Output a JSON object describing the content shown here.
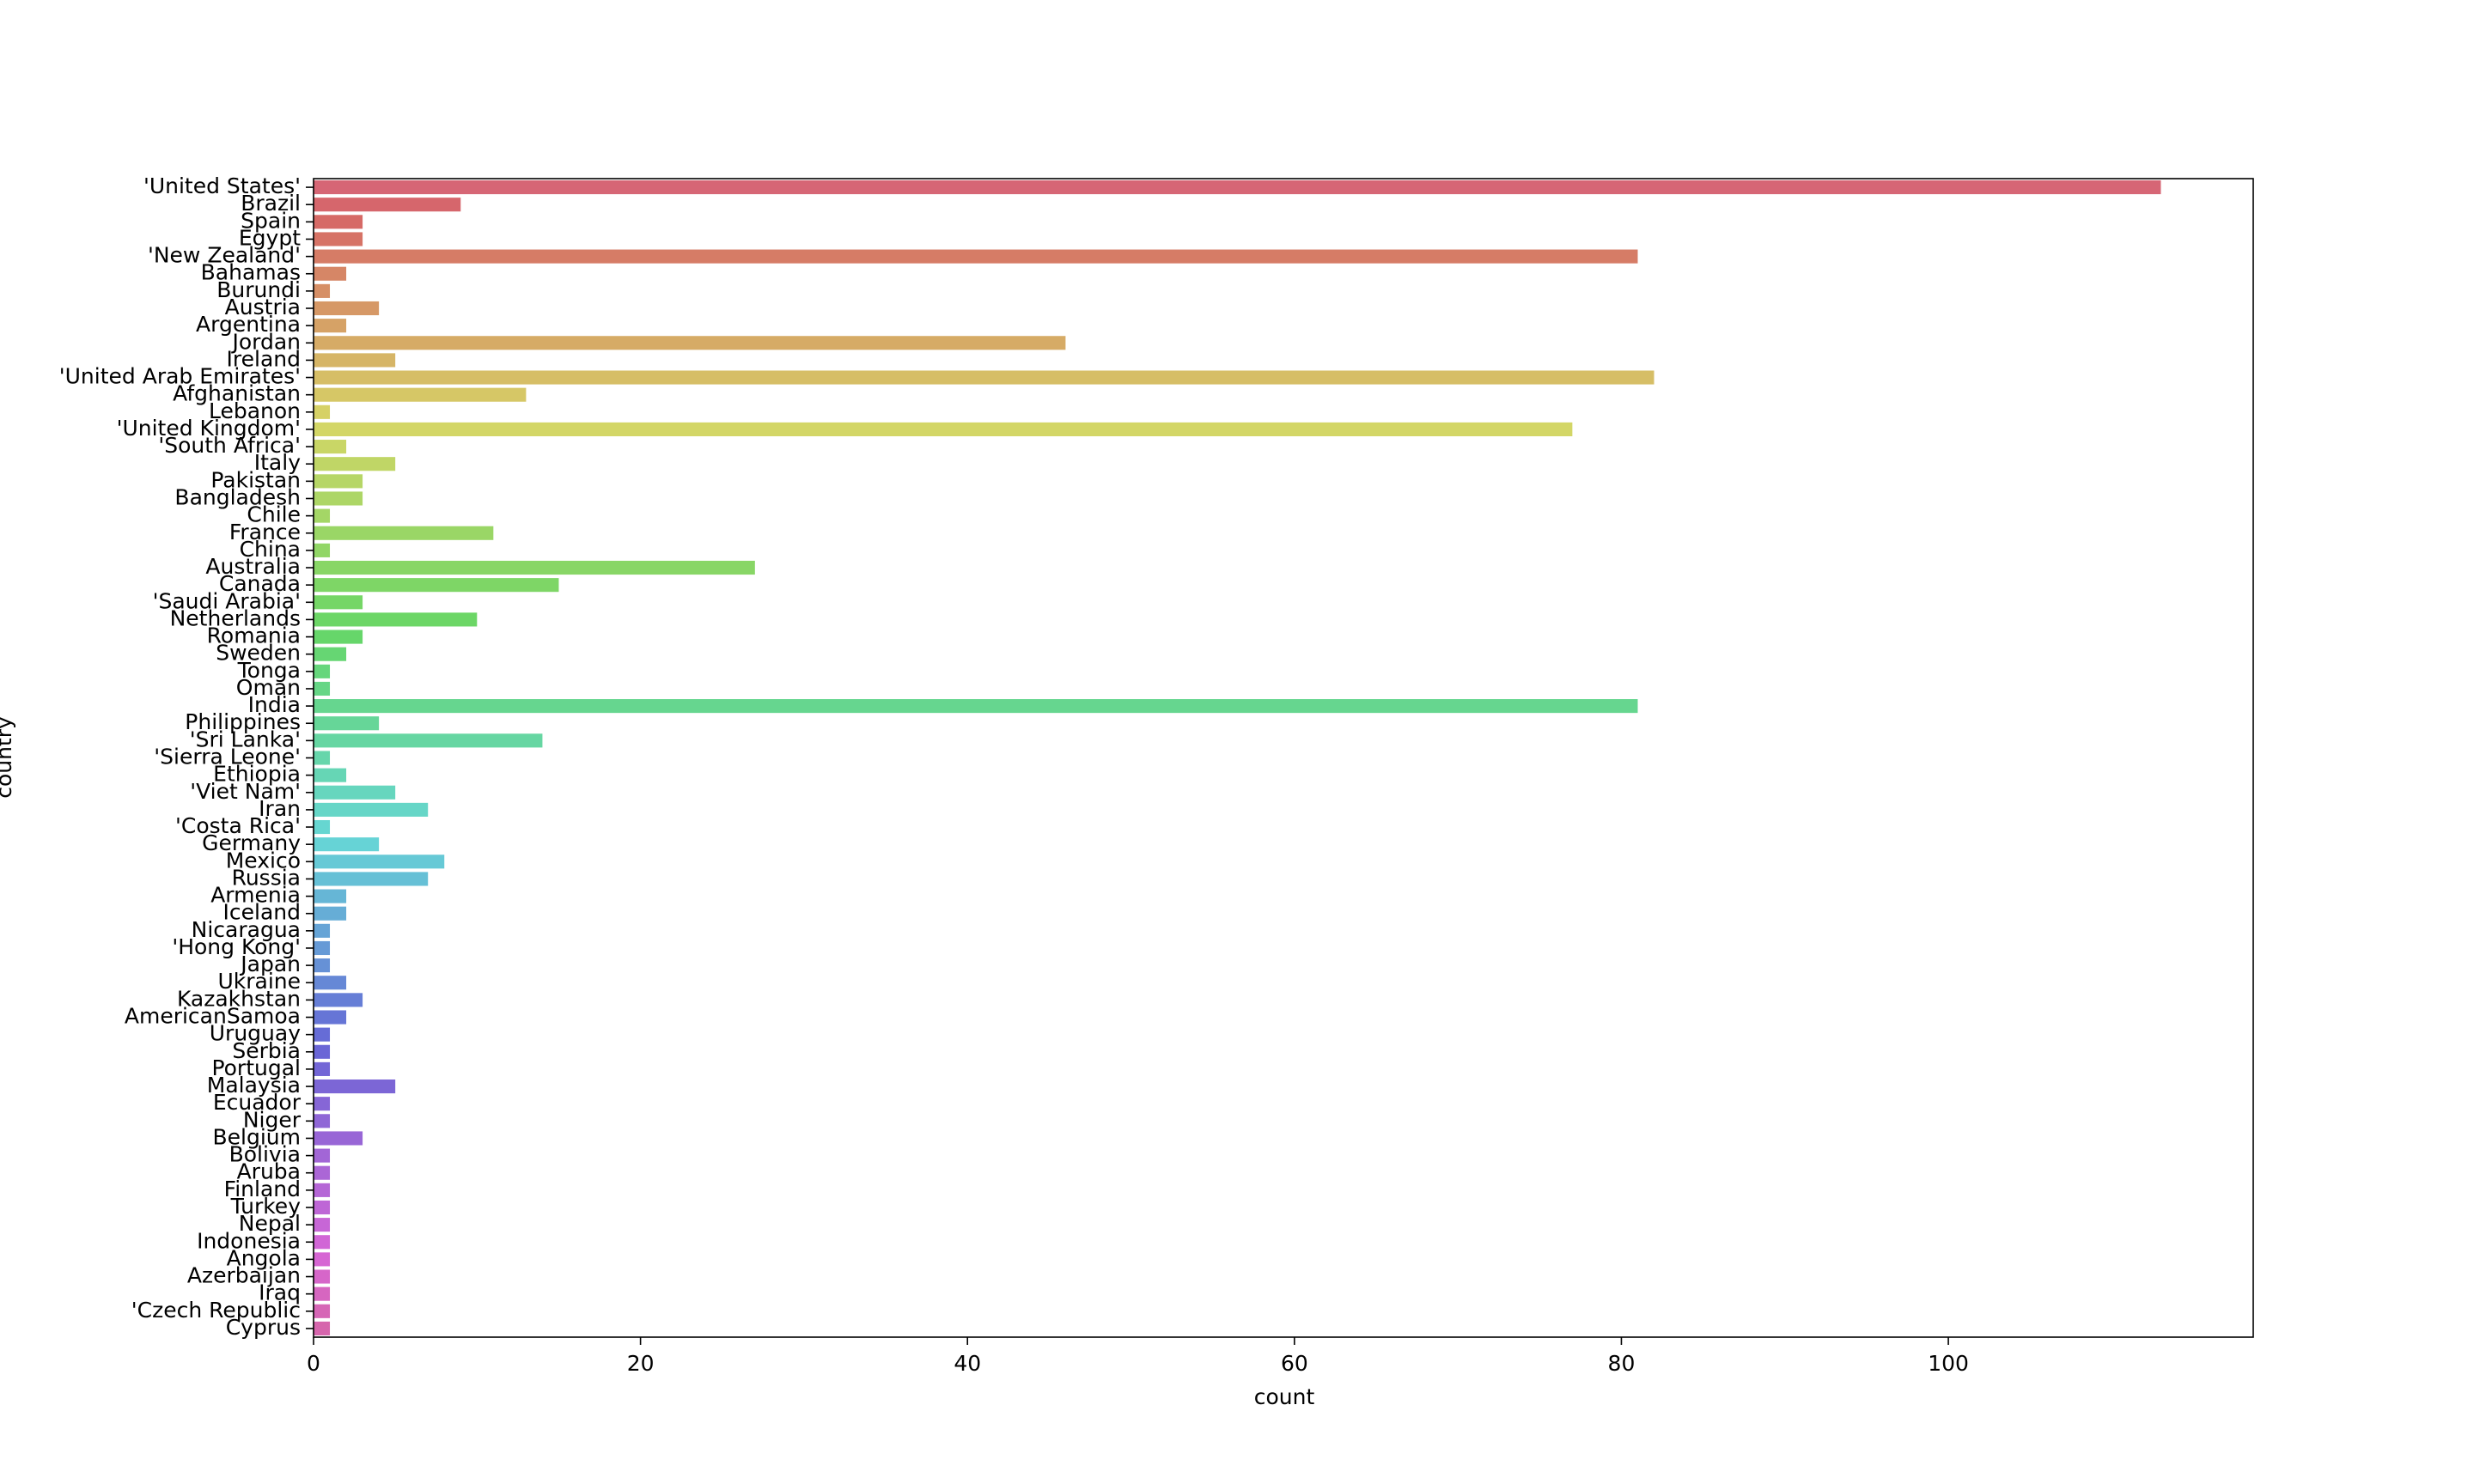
{
  "chart_data": {
    "type": "barh",
    "xlabel": "count",
    "ylabel": "country",
    "categories": [
      "'United States'",
      "Brazil",
      "Spain",
      "Egypt",
      "'New Zealand'",
      "Bahamas",
      "Burundi",
      "Austria",
      "Argentina",
      "Jordan",
      "Ireland",
      "'United Arab Emirates'",
      "Afghanistan",
      "Lebanon",
      "'United Kingdom'",
      "'South Africa'",
      "Italy",
      "Pakistan",
      "Bangladesh",
      "Chile",
      "France",
      "China",
      "Australia",
      "Canada",
      "'Saudi Arabia'",
      "Netherlands",
      "Romania",
      "Sweden",
      "Tonga",
      "Oman",
      "India",
      "Philippines",
      "'Sri Lanka'",
      "'Sierra Leone'",
      "Ethiopia",
      "'Viet Nam'",
      "Iran",
      "'Costa Rica'",
      "Germany",
      "Mexico",
      "Russia",
      "Armenia",
      "Iceland",
      "Nicaragua",
      "'Hong Kong'",
      "Japan",
      "Ukraine",
      "Kazakhstan",
      "AmericanSamoa",
      "Uruguay",
      "Serbia",
      "Portugal",
      "Malaysia",
      "Ecuador",
      "Niger",
      "Belgium",
      "Bolivia",
      "Aruba",
      "Finland",
      "Turkey",
      "Nepal",
      "Indonesia",
      "Angola",
      "Azerbaijan",
      "Iraq",
      "'Czech Republic",
      "Cyprus"
    ],
    "values": [
      113,
      9,
      3,
      3,
      81,
      2,
      1,
      4,
      2,
      46,
      5,
      82,
      13,
      1,
      77,
      2,
      5,
      3,
      3,
      1,
      11,
      1,
      27,
      15,
      3,
      10,
      3,
      2,
      1,
      1,
      81,
      4,
      14,
      1,
      2,
      5,
      7,
      1,
      4,
      8,
      7,
      2,
      2,
      1,
      1,
      1,
      2,
      3,
      2,
      1,
      1,
      1,
      5,
      1,
      1,
      3,
      1,
      1,
      1,
      1,
      1,
      1,
      1,
      1,
      1,
      1,
      1
    ],
    "palette": "husl",
    "xlim": [
      0,
      118.65
    ],
    "xticks": [
      0,
      20,
      40,
      60,
      80,
      100
    ]
  }
}
